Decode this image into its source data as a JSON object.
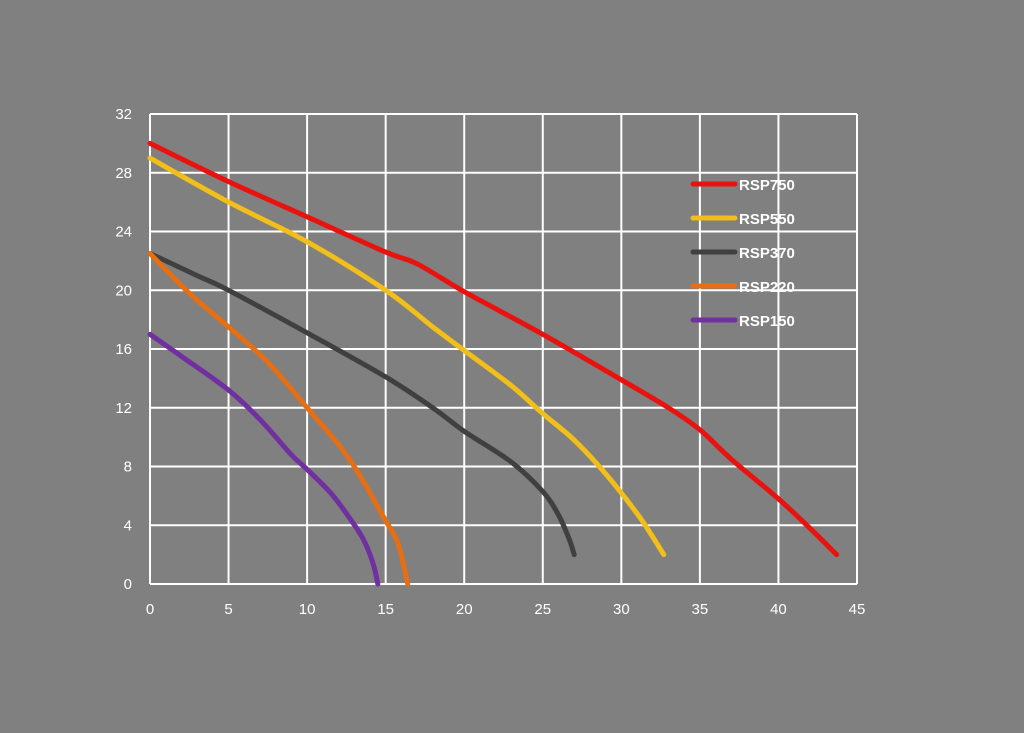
{
  "chart_data": {
    "type": "line",
    "title": "",
    "xlabel": "",
    "ylabel": "",
    "xlim": [
      0,
      45
    ],
    "ylim": [
      0,
      32
    ],
    "x_ticks": [
      0,
      5,
      10,
      15,
      20,
      25,
      30,
      35,
      40,
      45
    ],
    "y_ticks": [
      0,
      4,
      8,
      12,
      16,
      20,
      24,
      28,
      32
    ],
    "grid": true,
    "legend_position": "top-right",
    "background_color": "#808080",
    "grid_color": "#ffffff",
    "series": [
      {
        "name": "RSP750",
        "color": "#e8120f",
        "points": [
          [
            0,
            30
          ],
          [
            5,
            27.4
          ],
          [
            10,
            25
          ],
          [
            15,
            22.6
          ],
          [
            17,
            21.8
          ],
          [
            20,
            19.9
          ],
          [
            25,
            17
          ],
          [
            30,
            13.9
          ],
          [
            33,
            12
          ],
          [
            35,
            10.5
          ],
          [
            37,
            8.5
          ],
          [
            40,
            5.8
          ],
          [
            42,
            3.8
          ],
          [
            43.7,
            2
          ]
        ]
      },
      {
        "name": "RSP550",
        "color": "#f2be1a",
        "points": [
          [
            0,
            29
          ],
          [
            5,
            26
          ],
          [
            10,
            23.3
          ],
          [
            15,
            20
          ],
          [
            18,
            17.5
          ],
          [
            20,
            15.9
          ],
          [
            23,
            13.5
          ],
          [
            25,
            11.6
          ],
          [
            27,
            9.8
          ],
          [
            29,
            7.5
          ],
          [
            31,
            4.8
          ],
          [
            32,
            3.2
          ],
          [
            32.7,
            2
          ]
        ]
      },
      {
        "name": "RSP370",
        "color": "#404040",
        "points": [
          [
            0,
            22.5
          ],
          [
            3,
            21
          ],
          [
            5,
            20
          ],
          [
            10,
            17.1
          ],
          [
            15,
            14.1
          ],
          [
            18,
            12
          ],
          [
            20,
            10.4
          ],
          [
            23,
            8.3
          ],
          [
            25,
            6.3
          ],
          [
            26,
            4.7
          ],
          [
            26.7,
            3
          ],
          [
            27,
            2
          ]
        ]
      },
      {
        "name": "RSP220",
        "color": "#e66e13",
        "points": [
          [
            0,
            22.5
          ],
          [
            2.5,
            19.8
          ],
          [
            5,
            17.5
          ],
          [
            7.5,
            15.1
          ],
          [
            10,
            12
          ],
          [
            12,
            9.5
          ],
          [
            13,
            8
          ],
          [
            14,
            6.2
          ],
          [
            15,
            4.3
          ],
          [
            15.7,
            3
          ],
          [
            16.1,
            1.5
          ],
          [
            16.4,
            0
          ]
        ]
      },
      {
        "name": "RSP150",
        "color": "#7030a0",
        "points": [
          [
            0,
            17
          ],
          [
            2,
            15.5
          ],
          [
            5,
            13.2
          ],
          [
            7,
            11.2
          ],
          [
            9,
            8.8
          ],
          [
            10,
            7.8
          ],
          [
            11.5,
            6.2
          ],
          [
            12.5,
            4.8
          ],
          [
            13.5,
            3.2
          ],
          [
            14,
            2
          ],
          [
            14.3,
            1
          ],
          [
            14.5,
            0
          ]
        ]
      }
    ]
  }
}
